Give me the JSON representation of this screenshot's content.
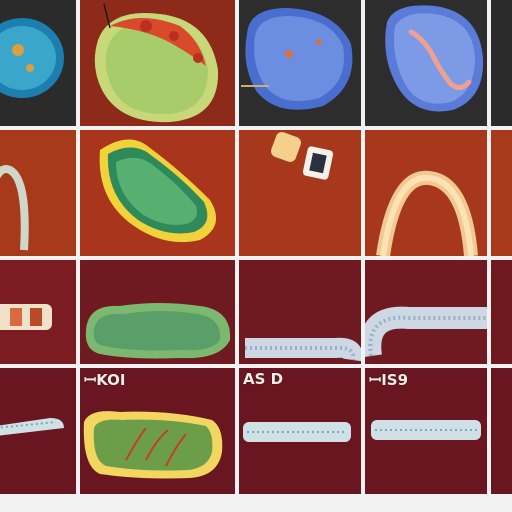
{
  "title": "",
  "tiles": [
    {
      "id": "r1c1",
      "color": "#2b2b2b",
      "subject": "blue-cell-specimen"
    },
    {
      "id": "r1c2",
      "color": "#8e2a1a",
      "subject": "green-cell-red-nuclei"
    },
    {
      "id": "r1c3",
      "color": "#2d2d2d",
      "subject": "blue-tissue-specimen"
    },
    {
      "id": "r1c4",
      "color": "#2d2d2d",
      "subject": "blue-tissue-with-worm"
    },
    {
      "id": "r1c5",
      "color": "#2b2b2b",
      "subject": "partial-blank"
    },
    {
      "id": "r2c1",
      "color": "#a83a1c",
      "subject": "arch-fragment"
    },
    {
      "id": "r2c2",
      "color": "#a8351c",
      "subject": "green-leaf-specimen"
    },
    {
      "id": "r2c3",
      "color": "#a8381c",
      "subject": "small-vial"
    },
    {
      "id": "r2c4",
      "color": "#a8381c",
      "subject": "arch-tube"
    },
    {
      "id": "r2c5",
      "color": "#a83a1c",
      "subject": "partial-blank"
    },
    {
      "id": "r3c1",
      "color": "#7a1c22",
      "subject": "capsule-device"
    },
    {
      "id": "r3c2",
      "color": "#6e1a20",
      "subject": "green-tissue-strip"
    },
    {
      "id": "r3c3",
      "color": "#6e1a20",
      "subject": "bent-tube"
    },
    {
      "id": "r3c4",
      "color": "#6e1a20",
      "subject": "curved-tube"
    },
    {
      "id": "r3c5",
      "color": "#6e1a20",
      "subject": "partial-blank"
    },
    {
      "id": "r4c1",
      "color": "#6a1620",
      "subject": "short-tube"
    },
    {
      "id": "r4c2",
      "color": "#6a1620",
      "subject": "yellow-green-tissue"
    },
    {
      "id": "r4c3",
      "color": "#6a1620",
      "subject": "straight-tube"
    },
    {
      "id": "r4c4",
      "color": "#6a1620",
      "subject": "straight-tube"
    },
    {
      "id": "r4c5",
      "color": "#6a1620",
      "subject": "partial-blank"
    }
  ],
  "captions": {
    "r4c2": "ꟷKOI",
    "r4c3": "AS D",
    "r4c4": "ꟷIS9"
  }
}
